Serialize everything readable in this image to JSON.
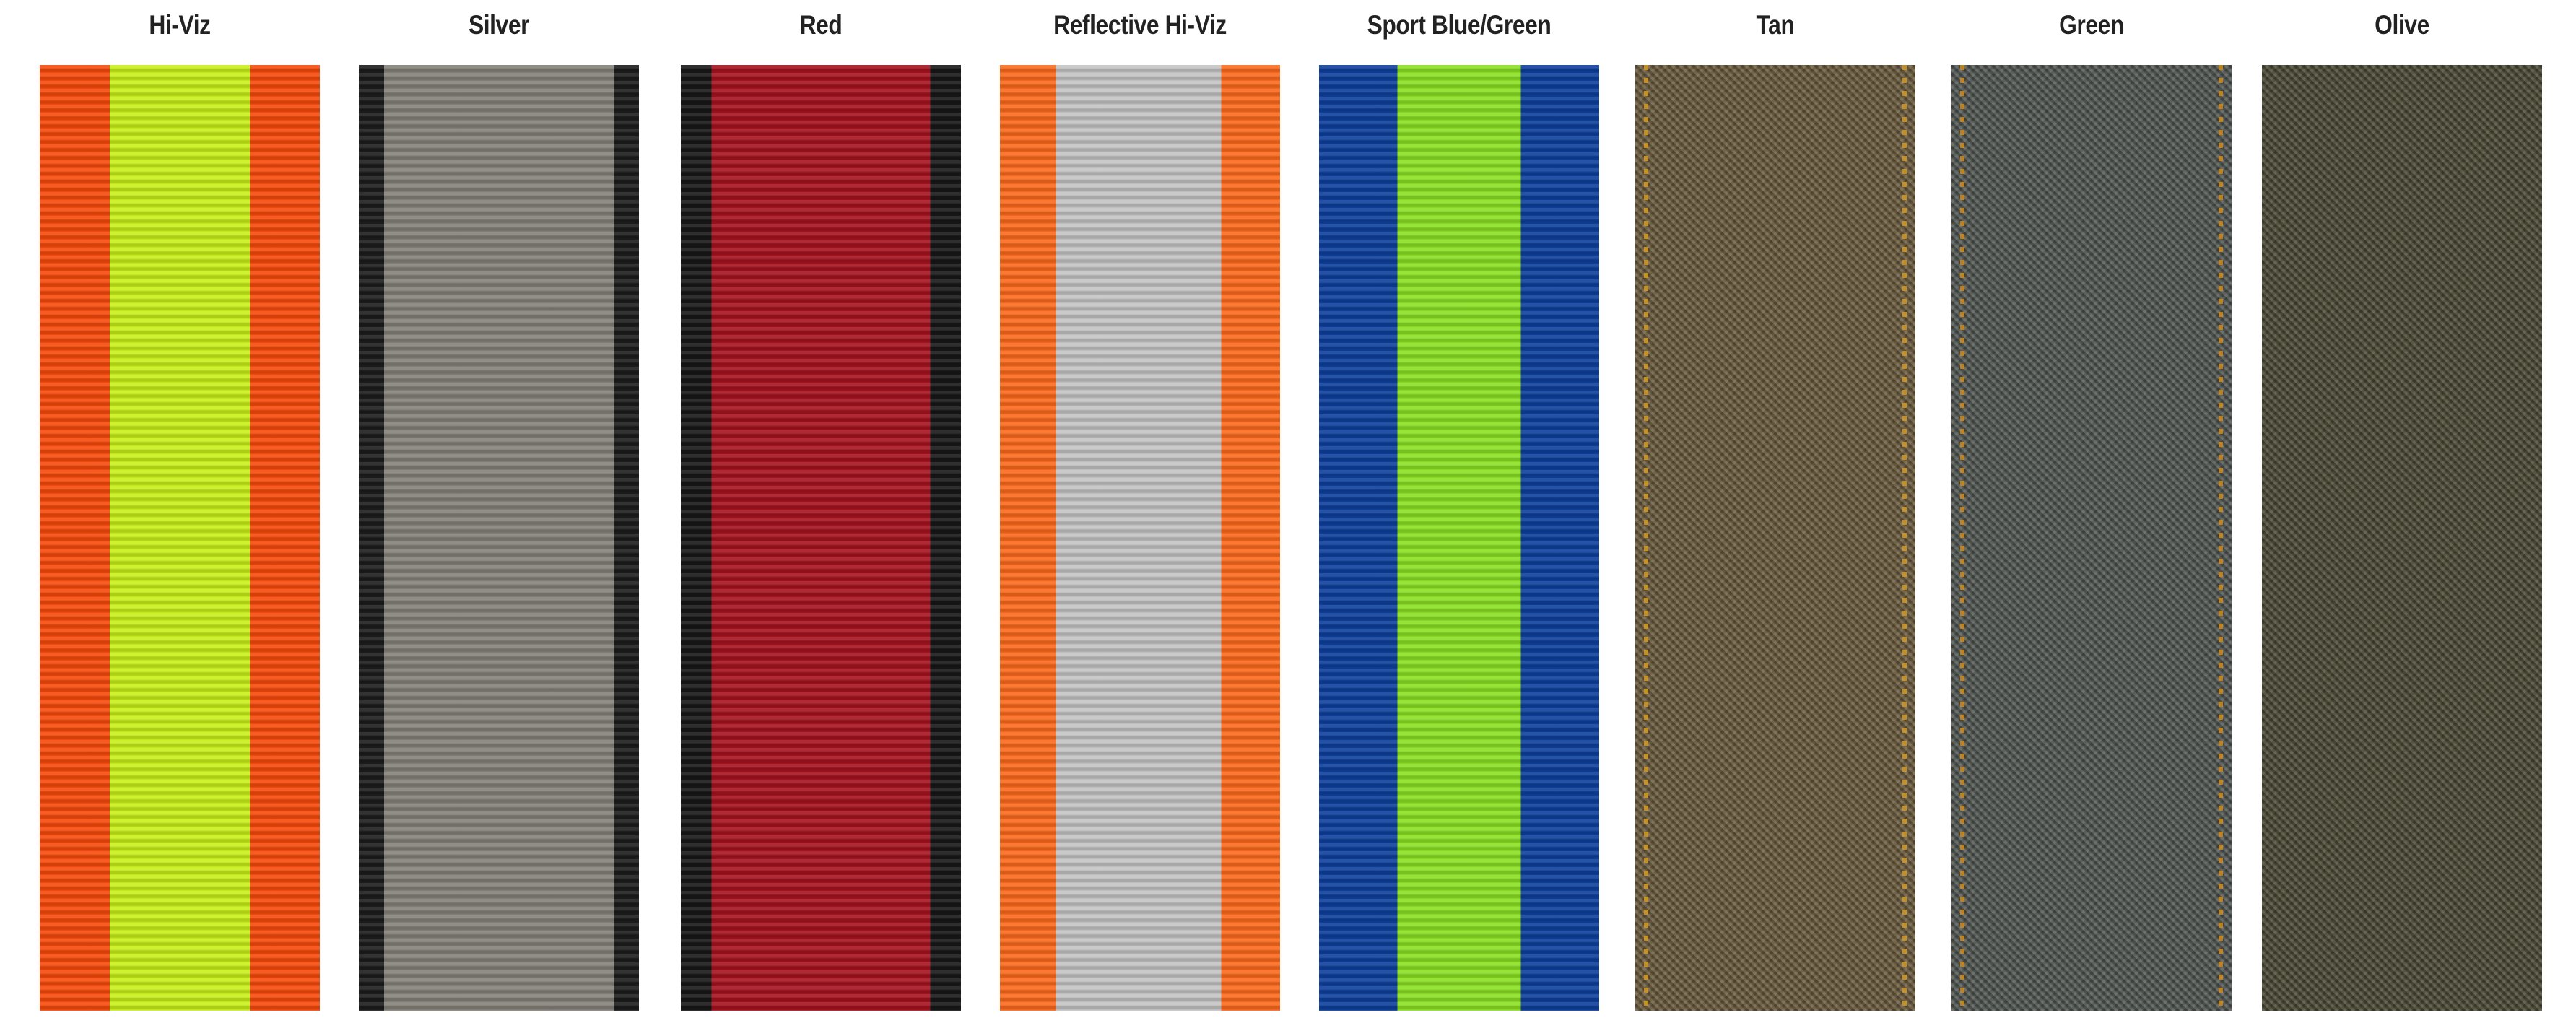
{
  "swatches": [
    {
      "name": "Hi-Viz",
      "weave": "rib",
      "stripes": [
        {
          "color": "#f64a0c",
          "fraction": 0.25
        },
        {
          "color": "#c8f01a",
          "fraction": 0.5
        },
        {
          "color": "#f64a0c",
          "fraction": 0.25
        }
      ]
    },
    {
      "name": "Silver",
      "weave": "rib",
      "stripes": [
        {
          "color": "#1c1c1c",
          "fraction": 0.09
        },
        {
          "color": "#858179",
          "fraction": 0.82
        },
        {
          "color": "#1c1c1c",
          "fraction": 0.09
        }
      ]
    },
    {
      "name": "Red",
      "weave": "rib",
      "stripes": [
        {
          "color": "#171717",
          "fraction": 0.11
        },
        {
          "color": "#a5131f",
          "fraction": 0.78
        },
        {
          "color": "#171717",
          "fraction": 0.11
        }
      ]
    },
    {
      "name": "Reflective Hi-Viz",
      "weave": "rib",
      "stripes": [
        {
          "color": "#fb6a1e",
          "fraction": 0.2
        },
        {
          "color": "#c4c4c4",
          "fraction": 0.59
        },
        {
          "color": "#fb6a1e",
          "fraction": 0.21
        }
      ]
    },
    {
      "name": "Sport Blue/Green",
      "weave": "rib",
      "stripes": [
        {
          "color": "#0e3f9c",
          "fraction": 0.28
        },
        {
          "color": "#8be024",
          "fraction": 0.44
        },
        {
          "color": "#0e3f9c",
          "fraction": 0.28
        }
      ]
    },
    {
      "name": "Tan",
      "weave": "twill",
      "stripes": [
        {
          "color": "#6c5c3e",
          "fraction": 1.0
        }
      ],
      "stitch_color": "#d49a22"
    },
    {
      "name": "Green",
      "weave": "twill",
      "stripes": [
        {
          "color": "#525853",
          "fraction": 1.0
        }
      ],
      "stitch_color": "#d08a1c"
    },
    {
      "name": "Olive",
      "weave": "twill",
      "stripes": [
        {
          "color": "#4c4a35",
          "fraction": 1.0
        }
      ]
    }
  ]
}
